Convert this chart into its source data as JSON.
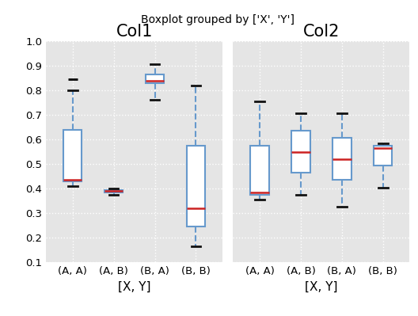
{
  "title": "Boxplot grouped by ['X', 'Y']",
  "col1_title": "Col1",
  "col2_title": "Col2",
  "xlabel": "[X, Y]",
  "xtick_labels": [
    "(A, A)",
    "(A, B)",
    "(B, A)",
    "(B, B)"
  ],
  "ylim": [
    0.1,
    1.0
  ],
  "yticks": [
    0.1,
    0.2,
    0.3,
    0.4,
    0.5,
    0.6,
    0.7,
    0.8,
    0.9,
    1.0
  ],
  "col1": {
    "(A,A)": {
      "whislo": 0.41,
      "q1": 0.43,
      "med": 0.435,
      "q3": 0.64,
      "whishi": 0.8,
      "fliers_high": [
        0.845
      ],
      "fliers_low": []
    },
    "(A,B)": {
      "whislo": 0.375,
      "q1": 0.385,
      "med": 0.39,
      "q3": 0.395,
      "whishi": 0.4,
      "fliers_high": [],
      "fliers_low": []
    },
    "(B,A)": {
      "whislo": 0.76,
      "q1": 0.83,
      "med": 0.84,
      "q3": 0.865,
      "whishi": 0.905,
      "fliers_high": [],
      "fliers_low": []
    },
    "(B,B)": {
      "whislo": 0.165,
      "q1": 0.245,
      "med": 0.32,
      "q3": 0.575,
      "whishi": 0.82,
      "fliers_high": [],
      "fliers_low": []
    }
  },
  "col2": {
    "(A,A)": {
      "whislo": 0.355,
      "q1": 0.375,
      "med": 0.385,
      "q3": 0.575,
      "whishi": 0.755,
      "fliers_high": [],
      "fliers_low": []
    },
    "(A,B)": {
      "whislo": 0.375,
      "q1": 0.465,
      "med": 0.55,
      "q3": 0.635,
      "whishi": 0.705,
      "fliers_high": [],
      "fliers_low": []
    },
    "(B,A)": {
      "whislo": 0.325,
      "q1": 0.435,
      "med": 0.52,
      "q3": 0.605,
      "whishi": 0.705,
      "fliers_high": [],
      "fliers_low": []
    },
    "(B,B)": {
      "whislo": 0.405,
      "q1": 0.495,
      "med": 0.565,
      "q3": 0.575,
      "whishi": 0.585,
      "fliers_high": [],
      "fliers_low": []
    }
  },
  "box_color": "#6699CC",
  "median_color": "#CC2222",
  "whisker_color": "#6699CC",
  "cap_color": "#111111",
  "flier_color": "#111111",
  "axes_bg_color": "#E5E5E5",
  "fig_bg_color": "#FFFFFF",
  "grid_color": "#FFFFFF",
  "title_fontsize": 10,
  "col_title_fontsize": 15,
  "tick_fontsize": 9.5,
  "xlabel_fontsize": 11
}
